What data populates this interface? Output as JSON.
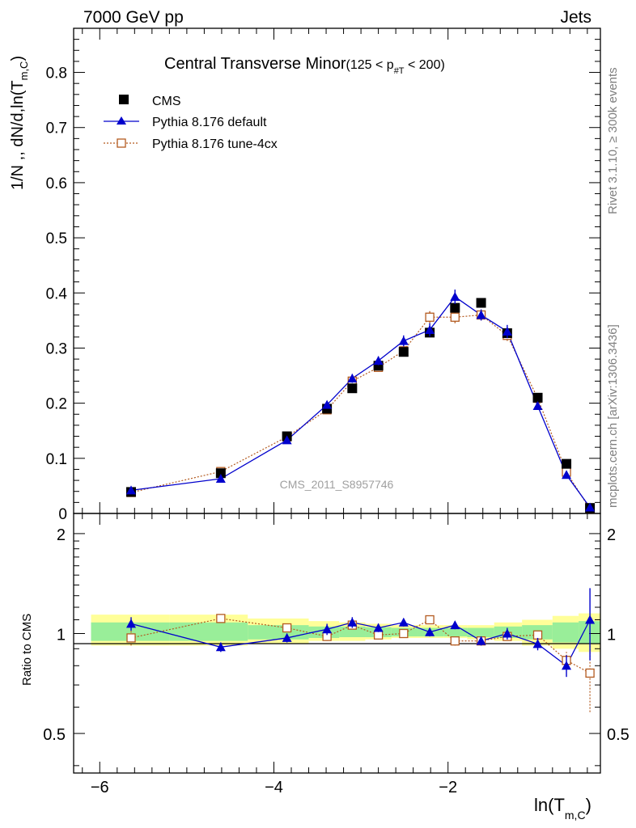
{
  "header": {
    "left": "7000 GeV pp",
    "right": "Jets"
  },
  "side_labels": {
    "top": "Rivet 3.1.10, ≥ 300k events",
    "bottom": "mcplots.cern.ch [arXiv:1306.3436]"
  },
  "chart_data": [
    {
      "type": "scatter",
      "title_main": "Central Transverse Minor",
      "title_sub": "(125 < p",
      "title_sub_script": "#T",
      "title_sub_end": " < 200)",
      "ylabel": "1/N ,, dN/d,ln(T",
      "ylabel_sub": "m,C",
      "ylabel_close": ")",
      "watermark": "CMS_2011_S8957746",
      "ylim": [
        0,
        0.88
      ],
      "yticks": [
        0,
        0.1,
        0.2,
        0.3,
        0.4,
        0.5,
        0.6,
        0.7,
        0.8
      ],
      "ytick_labels": [
        "0",
        "0.1",
        "0.2",
        "0.3",
        "0.4",
        "0.5",
        "0.6",
        "0.7",
        "0.8"
      ],
      "xlim": [
        -6.3,
        -0.25
      ],
      "legend_position": "top-left",
      "series": [
        {
          "name": "CMS",
          "color": "#000000",
          "marker": "filled-square",
          "line": "none",
          "x": [
            -5.64,
            -4.61,
            -3.85,
            -3.39,
            -3.1,
            -2.8,
            -2.51,
            -2.21,
            -1.92,
            -1.62,
            -1.32,
            -0.97,
            -0.64,
            -0.37
          ],
          "y": [
            0.039,
            0.073,
            0.14,
            0.19,
            0.227,
            0.268,
            0.293,
            0.328,
            0.373,
            0.382,
            0.327,
            0.21,
            0.09,
            0.01
          ]
        },
        {
          "name": "Pythia 8.176 default",
          "color": "#0000cc",
          "marker": "filled-triangle",
          "line": "solid",
          "x": [
            -5.64,
            -4.61,
            -3.85,
            -3.39,
            -3.1,
            -2.8,
            -2.51,
            -2.21,
            -1.92,
            -1.62,
            -1.32,
            -0.97,
            -0.64,
            -0.37
          ],
          "y": [
            0.042,
            0.063,
            0.133,
            0.197,
            0.245,
            0.277,
            0.313,
            0.333,
            0.393,
            0.36,
            0.33,
            0.195,
            0.07,
            0.011
          ],
          "err": [
            0.003,
            0.003,
            0.004,
            0.007,
            0.008,
            0.008,
            0.01,
            0.012,
            0.013,
            0.01,
            0.012,
            0.007,
            0.005,
            0.002
          ]
        },
        {
          "name": "Pythia 8.176 tune-4cx",
          "color": "#b35a1f",
          "marker": "open-square",
          "line": "dotted",
          "x": [
            -5.64,
            -4.61,
            -3.85,
            -3.39,
            -3.1,
            -2.8,
            -2.51,
            -2.21,
            -1.92,
            -1.62,
            -1.32,
            -0.97,
            -0.64,
            -0.37
          ],
          "y": [
            0.038,
            0.076,
            0.139,
            0.188,
            0.24,
            0.265,
            0.295,
            0.356,
            0.356,
            0.36,
            0.323,
            0.209,
            0.075,
            0.008
          ],
          "err": [
            0.003,
            0.004,
            0.005,
            0.006,
            0.007,
            0.008,
            0.009,
            0.011,
            0.011,
            0.01,
            0.01,
            0.007,
            0.005,
            0.002
          ]
        }
      ]
    },
    {
      "type": "scatter",
      "ylabel": "Ratio to CMS",
      "xlabel": "ln(T",
      "xlabel_sub": "m,C",
      "xlabel_close": ")",
      "ylim": [
        0.38,
        2.3
      ],
      "yscale": "log",
      "yticks": [
        0.5,
        1,
        2
      ],
      "ytick_labels": [
        "0.5",
        "1",
        "2"
      ],
      "xlim": [
        -6.3,
        -0.25
      ],
      "xticks": [
        -6,
        -4,
        -2
      ],
      "xtick_labels": [
        "−6",
        "−4",
        "−2"
      ],
      "bands": {
        "x_edges": [
          -6.1,
          -5.2,
          -4.3,
          -3.6,
          -3.25,
          -2.95,
          -2.65,
          -2.35,
          -2.05,
          -1.78,
          -1.47,
          -1.15,
          -0.8,
          -0.5,
          -0.25
        ],
        "yellow_lo": [
          0.92,
          0.92,
          0.93,
          0.95,
          0.95,
          0.96,
          0.97,
          0.97,
          0.97,
          0.96,
          0.95,
          0.92,
          0.9,
          0.88
        ],
        "yellow_hi": [
          1.14,
          1.14,
          1.11,
          1.09,
          1.08,
          1.07,
          1.06,
          1.06,
          1.06,
          1.06,
          1.08,
          1.1,
          1.13,
          1.15
        ],
        "green_lo": [
          0.95,
          0.95,
          0.96,
          0.97,
          0.975,
          0.975,
          0.98,
          0.98,
          0.98,
          0.975,
          0.97,
          0.96,
          0.94,
          0.93
        ],
        "green_hi": [
          1.08,
          1.08,
          1.06,
          1.05,
          1.05,
          1.045,
          1.04,
          1.04,
          1.04,
          1.04,
          1.05,
          1.06,
          1.08,
          1.09
        ],
        "yellow_color": "#ffff99",
        "green_color": "#99ee99"
      },
      "series": [
        {
          "name": "Pythia 8.176 default",
          "color": "#0000cc",
          "x": [
            -5.64,
            -4.61,
            -3.85,
            -3.39,
            -3.1,
            -2.8,
            -2.51,
            -2.21,
            -1.92,
            -1.62,
            -1.32,
            -0.97,
            -0.64,
            -0.37
          ],
          "y": [
            1.07,
            0.91,
            0.97,
            1.03,
            1.08,
            1.04,
            1.08,
            1.01,
            1.06,
            0.95,
            1.0,
            0.93,
            0.8,
            1.1
          ],
          "err": [
            0.05,
            0.03,
            0.03,
            0.04,
            0.04,
            0.03,
            0.03,
            0.03,
            0.03,
            0.03,
            0.04,
            0.04,
            0.06,
            0.27
          ]
        },
        {
          "name": "Pythia 8.176 tune-4cx",
          "color": "#b35a1f",
          "x": [
            -5.64,
            -4.61,
            -3.85,
            -3.39,
            -3.1,
            -2.8,
            -2.51,
            -2.21,
            -1.92,
            -1.62,
            -1.32,
            -0.97,
            -0.64,
            -0.37
          ],
          "y": [
            0.97,
            1.11,
            1.04,
            0.98,
            1.06,
            0.99,
            1.0,
            1.1,
            0.95,
            0.95,
            0.98,
            0.99,
            0.83,
            0.76
          ],
          "err": [
            0.05,
            0.03,
            0.03,
            0.03,
            0.03,
            0.03,
            0.03,
            0.03,
            0.03,
            0.03,
            0.03,
            0.03,
            0.05,
            0.18
          ]
        }
      ]
    }
  ]
}
